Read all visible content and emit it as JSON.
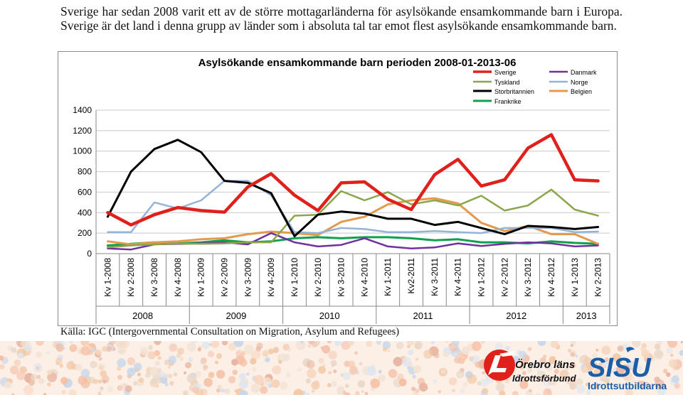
{
  "intro_text": "Sverige har sedan 2008 varit ett av de större mottagarländerna för asylsökande ensamkommande barn i Europa. Sverige är det land i denna grupp av länder som i absoluta tal tar emot flest asylsökande ensamkommande barn.",
  "source_text": "Källa: IGC (Intergovernmental Consultation on Migration, Asylum and Refugees)",
  "logos": {
    "rf_line1": "Örebro läns",
    "rf_line2": "Idrottsförbund",
    "sisu_main": "SISU",
    "sisu_sub": "Idrottsutbildarna"
  },
  "chart_data": {
    "type": "line",
    "title": "Asylsökande ensamkommande barn perioden 2008-01-2013-06",
    "ylim": [
      0,
      1400
    ],
    "y_ticks": [
      0,
      200,
      400,
      600,
      800,
      1000,
      1200,
      1400
    ],
    "grid": true,
    "legend_position": "top-right",
    "categories": [
      "Kv 1-2008",
      "Kv 2-2008",
      "Kv 3-2008",
      "Kv 4-2008",
      "Kv 1-2009",
      "Kv 2-2009",
      "Kv 3-2009",
      "Kv 4-2009",
      "Kv 1-2010",
      "Kv 2-2010",
      "Kv 3-2010",
      "Kv 4-2010",
      "Kv 1-2011",
      "Kv2-2011",
      "Kv 3-2011",
      "Kv 4-2011",
      "Kv 1-2012",
      "Kv 2-2012",
      "Kv 3-2012",
      "Kv 4-2012",
      "Kv 1-2013",
      "Kv 2-2013"
    ],
    "year_groups": [
      {
        "label": "2008",
        "count": 4
      },
      {
        "label": "2009",
        "count": 4
      },
      {
        "label": "2010",
        "count": 4
      },
      {
        "label": "2011",
        "count": 4
      },
      {
        "label": "2012",
        "count": 4
      },
      {
        "label": "2013",
        "count": 2
      }
    ],
    "series": [
      {
        "name": "Sverige",
        "color": "#e0201b",
        "width": 4.5,
        "values": [
          400,
          280,
          380,
          450,
          420,
          405,
          650,
          780,
          570,
          420,
          690,
          700,
          530,
          430,
          770,
          920,
          660,
          720,
          1030,
          1160,
          720,
          710
        ]
      },
      {
        "name": "Danmark",
        "color": "#7030a0",
        "width": 2.5,
        "values": [
          50,
          40,
          90,
          95,
          100,
          110,
          90,
          200,
          110,
          70,
          85,
          150,
          70,
          50,
          60,
          100,
          75,
          95,
          110,
          100,
          70,
          80
        ]
      },
      {
        "name": "Tyskland",
        "color": "#8ba64a",
        "width": 2.5,
        "values": [
          60,
          80,
          90,
          100,
          95,
          100,
          110,
          110,
          370,
          380,
          610,
          520,
          600,
          480,
          520,
          470,
          565,
          420,
          470,
          625,
          430,
          370
        ]
      },
      {
        "name": "Norge",
        "color": "#95b3d7",
        "width": 2.5,
        "values": [
          210,
          210,
          500,
          440,
          520,
          710,
          710,
          570,
          210,
          200,
          250,
          240,
          210,
          210,
          220,
          210,
          200,
          250,
          250,
          250,
          210,
          215
        ]
      },
      {
        "name": "Storbritannien",
        "color": "#000000",
        "width": 3,
        "values": [
          360,
          800,
          1020,
          1110,
          990,
          710,
          690,
          590,
          170,
          380,
          410,
          390,
          340,
          340,
          280,
          310,
          250,
          190,
          270,
          260,
          240,
          260
        ]
      },
      {
        "name": "Belgien",
        "color": "#e39a4c",
        "width": 3,
        "values": [
          120,
          90,
          110,
          120,
          140,
          150,
          190,
          215,
          200,
          180,
          310,
          360,
          480,
          520,
          540,
          490,
          300,
          220,
          270,
          190,
          190,
          95
        ]
      },
      {
        "name": "Frankrike",
        "color": "#10a050",
        "width": 3,
        "values": [
          80,
          95,
          110,
          100,
          110,
          130,
          110,
          120,
          150,
          160,
          150,
          160,
          160,
          150,
          130,
          140,
          110,
          110,
          100,
          120,
          105,
          95
        ]
      }
    ]
  }
}
